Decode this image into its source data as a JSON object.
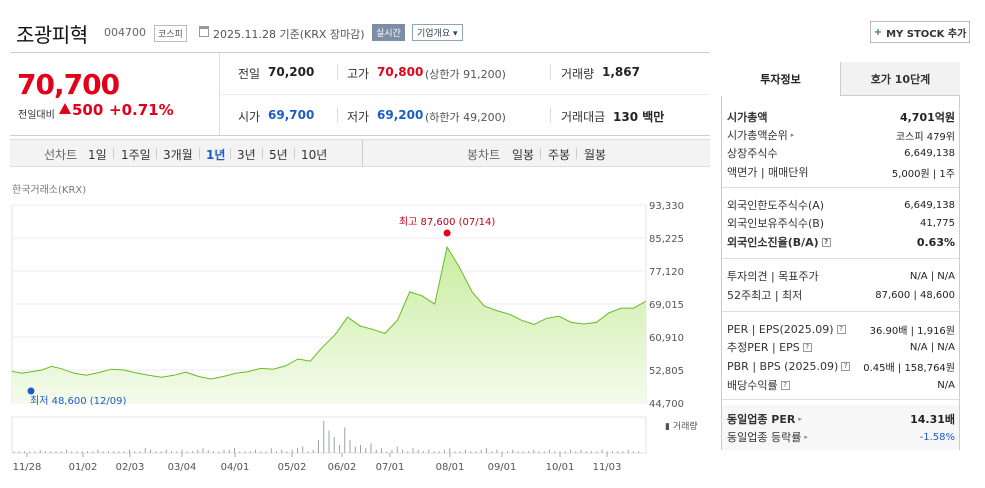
{
  "header": {
    "name": "조광피혁",
    "code": "004700",
    "market_tag": "코스피",
    "date": "2025.11.28 기준(KRX 장마감)",
    "realtime_tag": "실시간",
    "overview_tag": "기업개요 ▾",
    "mystock_label": "MY STOCK 추가"
  },
  "quote": {
    "price": "70,700",
    "change_label": "전일대비",
    "change_value": "500",
    "change_pct": "+0.71%",
    "prev_close_label": "전일",
    "prev_close": "70,200",
    "high_label": "고가",
    "high": "70,800",
    "upper_limit": "(상한가 91,200)",
    "volume_label": "거래량",
    "volume": "1,867",
    "open_label": "시가",
    "open": "69,700",
    "low_label": "저가",
    "low": "69,200",
    "lower_limit": "(하한가 49,200)",
    "amount_label": "거래대금",
    "amount": "130 백만",
    "colors": {
      "up": "#e2001a",
      "down": "#1a5dc8"
    }
  },
  "period_bar": {
    "line_label": "선차트",
    "periods": [
      "1일",
      "1주일",
      "3개월",
      "1년",
      "3년",
      "5년",
      "10년"
    ],
    "selected": "1년",
    "candle_label": "봉차트",
    "candles": [
      "일봉",
      "주봉",
      "월봉"
    ]
  },
  "chart_data": {
    "type": "area",
    "source_label": "한국거래소(KRX)",
    "x_ticks": [
      "11/28",
      "01/02",
      "02/03",
      "03/04",
      "04/01",
      "05/02",
      "06/02",
      "07/01",
      "08/01",
      "09/01",
      "10/01",
      "11/03"
    ],
    "y_ticks": [
      "93,330",
      "85,225",
      "77,120",
      "69,015",
      "60,910",
      "52,805",
      "44,700"
    ],
    "ylim": [
      44700,
      93330
    ],
    "max_label": "최고 87,600 (07/14)",
    "min_label": "최저 48,600 (12/09)",
    "volume_label": "거래량",
    "series": [
      {
        "x": [
          0,
          4,
          8,
          12,
          16,
          20,
          25,
          30,
          35,
          40,
          45,
          50,
          55,
          60,
          65,
          70,
          75,
          80,
          85,
          90,
          95,
          100,
          105,
          110,
          115,
          120,
          125,
          130,
          135,
          140,
          145,
          150,
          155,
          160,
          165,
          170,
          175,
          180,
          185,
          190,
          195,
          200,
          205,
          210,
          215,
          220,
          225,
          230,
          235,
          240,
          245,
          250,
          255
        ],
        "values": [
          52500,
          52000,
          52400,
          52800,
          53700,
          53100,
          52000,
          51500,
          52200,
          53000,
          52800,
          52100,
          51500,
          51000,
          51500,
          52300,
          51200,
          50600,
          51200,
          52000,
          52400,
          53200,
          53000,
          53800,
          55500,
          55000,
          58500,
          61500,
          65800,
          63600,
          62800,
          61800,
          65000,
          72000,
          71000,
          69000,
          83000,
          78000,
          72000,
          68500,
          67400,
          66500,
          65000,
          64000,
          65500,
          66000,
          64500,
          64100,
          64500,
          66800,
          68000,
          68000,
          69700
        ]
      }
    ],
    "line_color": "#66bb22",
    "fill_color": "#c9ed9f",
    "volume": [
      1,
      1,
      1,
      1,
      1,
      2,
      1,
      1,
      1,
      1,
      2,
      1,
      1,
      1,
      1,
      1,
      2,
      1,
      1,
      1,
      1,
      1,
      2,
      1,
      1,
      3,
      2,
      1,
      1,
      2,
      1,
      1,
      2,
      1,
      1,
      2,
      3,
      2,
      1,
      1,
      2,
      2,
      3,
      1,
      1,
      1,
      2,
      1,
      1,
      3,
      1,
      2,
      1,
      2,
      3,
      4,
      1,
      2,
      8,
      20,
      14,
      10,
      5,
      16,
      8,
      4,
      5,
      3,
      6,
      2,
      3,
      1,
      2,
      4,
      2,
      1,
      3,
      2,
      1,
      2,
      1,
      1,
      2,
      3,
      1,
      1,
      2,
      1,
      1,
      2,
      3,
      1,
      2,
      1,
      1,
      2,
      1,
      1,
      1,
      2,
      1,
      1,
      2,
      1,
      1,
      1,
      2,
      1,
      2,
      1,
      1,
      1,
      2,
      1,
      1,
      1,
      1,
      2,
      1,
      1
    ]
  },
  "right_panel": {
    "tabs": [
      "투자정보",
      "호가 10단계"
    ],
    "rows": [
      {
        "k": "시가총액",
        "v": "4,701억원",
        "bold": true
      },
      {
        "k": "시가총액순위",
        "v": "코스피 479위",
        "arrow": true
      },
      {
        "k": "상장주식수",
        "v": "6,649,138"
      },
      {
        "k": "액면가 | 매매단위",
        "v": "5,000원 | 1주"
      },
      {
        "k": "외국인한도주식수(A)",
        "v": "6,649,138"
      },
      {
        "k": "외국인보유주식수(B)",
        "v": "41,775"
      },
      {
        "k": "외국인소진율(B/A)",
        "v": "0.63%",
        "bold": true,
        "q": true
      },
      {
        "k": "투자의견 | 목표주가",
        "v": "N/A | N/A"
      },
      {
        "k": "52주최고 | 최저",
        "v": "87,600 | 48,600"
      },
      {
        "k": "PER | EPS(2025.09)",
        "v": "36.90배 | 1,916원",
        "q": true
      },
      {
        "k": "추정PER | EPS",
        "v": "N/A | N/A",
        "q": true
      },
      {
        "k": "PBR | BPS (2025.09)",
        "v": "0.45배 | 158,764원",
        "q": true
      },
      {
        "k": "배당수익률",
        "v": "N/A",
        "q": true
      },
      {
        "k": "동일업종 PER",
        "v": "14.31배",
        "bold": true,
        "arrow": true
      },
      {
        "k": "동일업종 등락률",
        "v": "-1.58%",
        "arrow": true
      }
    ]
  }
}
